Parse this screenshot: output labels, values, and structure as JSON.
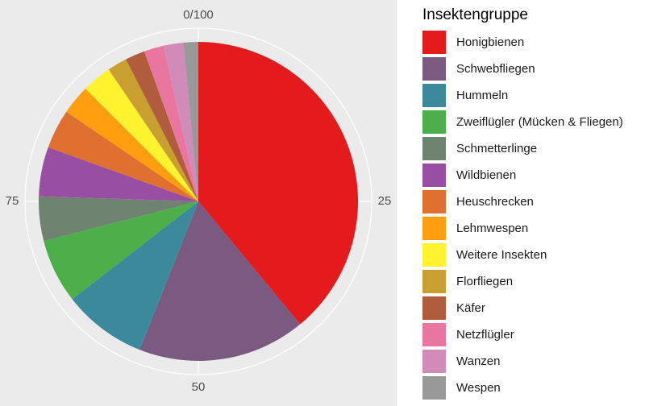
{
  "chart_data": {
    "type": "pie",
    "title": "",
    "legend_title": "Insektengruppe",
    "legend_position": "right",
    "theta_axis": {
      "range": [
        0,
        100
      ],
      "ticks": [
        "0/100",
        "25",
        "50",
        "75"
      ]
    },
    "slices": [
      {
        "label": "Honigbienen",
        "value": 39.0,
        "color": "#e41a1c"
      },
      {
        "label": "Schwebfliegen",
        "value": 17.0,
        "color": "#7a5a80"
      },
      {
        "label": "Hummeln",
        "value": 8.5,
        "color": "#3a8a9c"
      },
      {
        "label": "Zweiflügler (Mücken & Fliegen)",
        "value": 6.5,
        "color": "#4daf4a"
      },
      {
        "label": "Schmetterlinge",
        "value": 4.5,
        "color": "#6e8470"
      },
      {
        "label": "Wildbienen",
        "value": 5.0,
        "color": "#984ea3"
      },
      {
        "label": "Heuschrecken",
        "value": 4.0,
        "color": "#e07030"
      },
      {
        "label": "Lehmwespen",
        "value": 3.0,
        "color": "#ff9f10"
      },
      {
        "label": "Weitere Insekten",
        "value": 3.0,
        "color": "#fff22e"
      },
      {
        "label": "Florfliegen",
        "value": 2.0,
        "color": "#c9a02f"
      },
      {
        "label": "Käfer",
        "value": 2.0,
        "color": "#b15c3c"
      },
      {
        "label": "Netzflügler",
        "value": 2.0,
        "color": "#e8769f"
      },
      {
        "label": "Wanzen",
        "value": 2.0,
        "color": "#d18bb8"
      },
      {
        "label": "Wespen",
        "value": 1.5,
        "color": "#999999"
      }
    ]
  }
}
